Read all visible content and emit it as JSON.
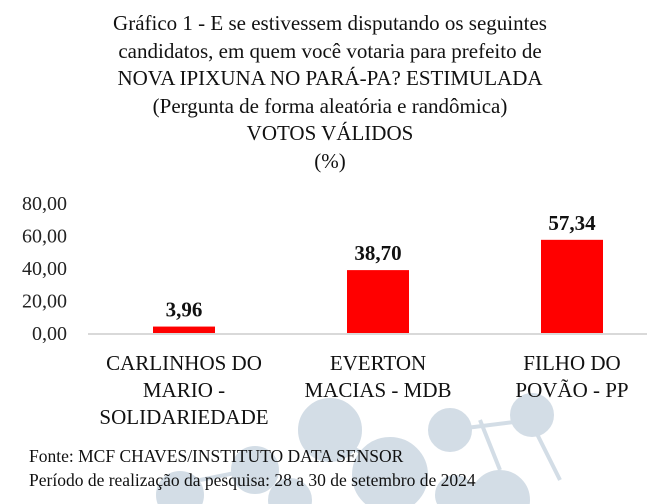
{
  "chart_data": {
    "type": "bar",
    "title_lines": [
      "Gráfico 1 - E se estivessem disputando os seguintes",
      "candidatos, em quem você votaria para prefeito de",
      "NOVA IPIXUNA NO PARÁ-PA? ESTIMULADA",
      "(Pergunta de forma aleatória e randômica)",
      "VOTOS VÁLIDOS",
      "(%)"
    ],
    "categories": [
      [
        "CARLINHOS DO",
        "MARIO -",
        "SOLIDARIEDADE"
      ],
      [
        "EVERTON",
        "MACIAS - MDB"
      ],
      [
        "FILHO DO",
        "POVÃO - PP"
      ]
    ],
    "values": [
      3.96,
      38.7,
      57.34
    ],
    "value_labels": [
      "3,96",
      "38,70",
      "57,34"
    ],
    "yticks": [
      0,
      20,
      40,
      60,
      80
    ],
    "ytick_labels": [
      "0,00",
      "20,00",
      "40,00",
      "60,00",
      "80,00"
    ],
    "ylim": [
      0,
      80
    ],
    "bar_color": "#ff0000",
    "grid": false,
    "xlabel": "",
    "ylabel": ""
  },
  "footer": {
    "source": "Fonte: MCF CHAVES/INSTITUTO DATA SENSOR",
    "period": "Período de realização da pesquisa: 28 a 30 de setembro de 2024"
  }
}
